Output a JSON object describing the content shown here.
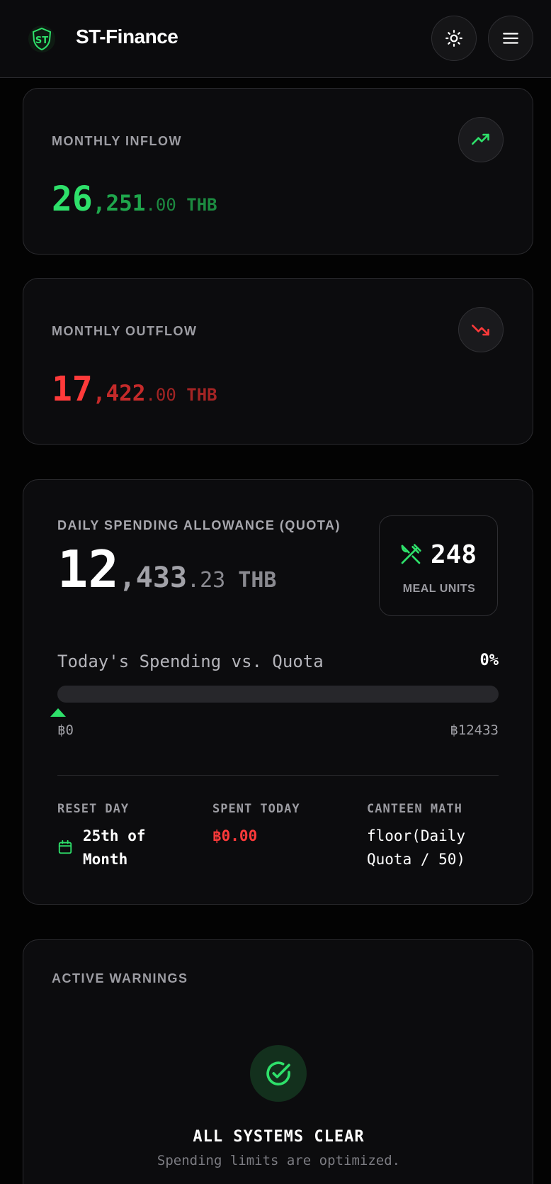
{
  "header": {
    "brand": "ST-Finance",
    "logo_icon": "shield-logo-icon",
    "theme_icon": "sun-icon",
    "menu_icon": "hamburger-menu-icon"
  },
  "inflow": {
    "label": "MONTHLY INFLOW",
    "amount_major": "26",
    "amount_thousands": ",251",
    "amount_cents": ".00",
    "currency": " THB",
    "icon": "trending-up-icon",
    "color": "#2ee06a"
  },
  "outflow": {
    "label": "MONTHLY OUTFLOW",
    "amount_major": "17",
    "amount_thousands": ",422",
    "amount_cents": ".00",
    "currency": " THB",
    "icon": "trending-down-icon",
    "color": "#ff3a3a"
  },
  "quota": {
    "label": "DAILY SPENDING ALLOWANCE (QUOTA)",
    "amount_major": "12",
    "amount_thousands": ",433",
    "amount_cents": ".23",
    "currency": " THB",
    "meal": {
      "icon": "utensils-crossed-icon",
      "value": "248",
      "label": "MEAL UNITS"
    },
    "progress": {
      "title": "Today's Spending vs. Quota",
      "percent_text": "0%",
      "fraction": 0,
      "min_label": "฿0",
      "max_label": "฿12433"
    },
    "stats": {
      "reset_label": "RESET DAY",
      "reset_value": "25th of Month",
      "spent_label": "SPENT TODAY",
      "spent_value": "฿0.00",
      "math_label": "CANTEEN MATH",
      "math_value": "floor(Daily Quota / 50)"
    }
  },
  "warnings": {
    "label": "ACTIVE WARNINGS",
    "status_icon": "check-circle-icon",
    "status_title": "ALL SYSTEMS CLEAR",
    "status_subtitle": "Spending limits are optimized."
  }
}
